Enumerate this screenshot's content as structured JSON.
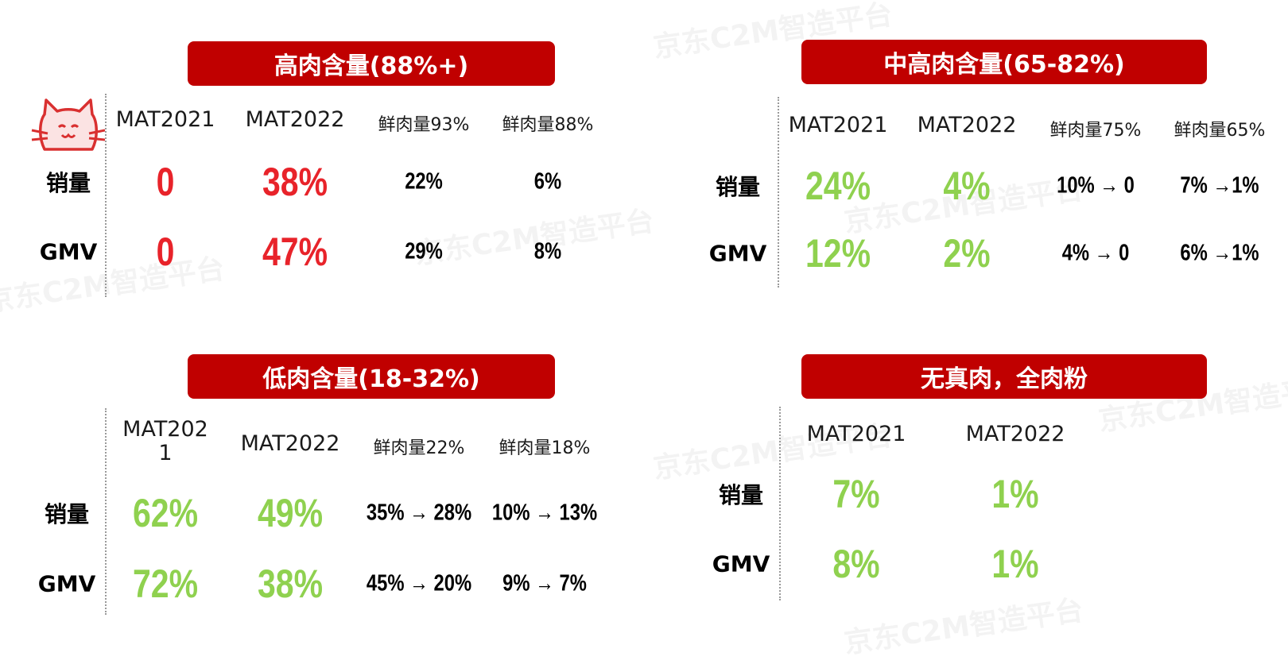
{
  "brand_color": "#c00000",
  "accent_red": "#e8232a",
  "accent_green": "#8fd14f",
  "watermark": "京东C2M智造平台",
  "panels": [
    {
      "title": "高肉含量(88%+)",
      "headers": [
        "MAT2021",
        "MAT2022",
        "鲜肉量93%",
        "鲜肉量88%"
      ],
      "rows": [
        {
          "label": "销量",
          "values": [
            "0",
            "38%",
            "22%",
            "6%"
          ]
        },
        {
          "label": "GMV",
          "values": [
            "0",
            "47%",
            "29%",
            "8%"
          ]
        }
      ]
    },
    {
      "title": "中高肉含量(65-82%)",
      "headers": [
        "MAT2021",
        "MAT2022",
        "鲜肉量75%",
        "鲜肉量65%"
      ],
      "rows": [
        {
          "label": "销量",
          "values": [
            "24%",
            "4%",
            "10% → 0",
            "7% →1%"
          ]
        },
        {
          "label": "GMV",
          "values": [
            "12%",
            "2%",
            "4% → 0",
            "6% →1%"
          ]
        }
      ]
    },
    {
      "title": "低肉含量(18-32%)",
      "headers": [
        "MAT202\n1",
        "MAT2022",
        "鲜肉量22%",
        "鲜肉量18%"
      ],
      "rows": [
        {
          "label": "销量",
          "values": [
            "62%",
            "49%",
            "35% → 28%",
            "10% → 13%"
          ]
        },
        {
          "label": "GMV",
          "values": [
            "72%",
            "38%",
            "45% → 20%",
            "9% → 7%"
          ]
        }
      ]
    },
    {
      "title": "无真肉，全肉粉",
      "headers": [
        "MAT2021",
        "MAT2022"
      ],
      "rows": [
        {
          "label": "销量",
          "values": [
            "7%",
            "1%"
          ]
        },
        {
          "label": "GMV",
          "values": [
            "8%",
            "1%"
          ]
        }
      ]
    }
  ]
}
